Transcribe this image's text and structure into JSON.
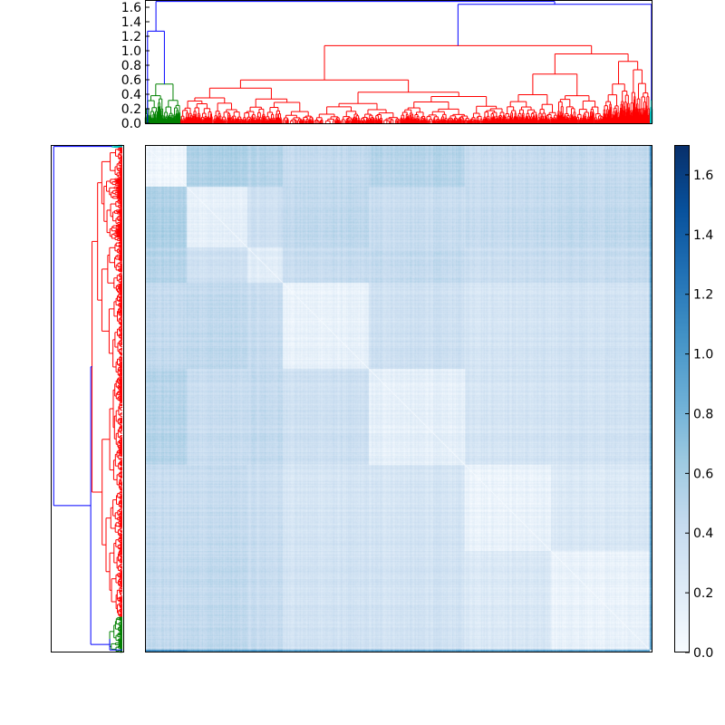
{
  "chart_data": {
    "type": "heatmap",
    "title": "",
    "description_encoding": "clustered distance matrix with top and left dendrograms",
    "colormap": "Blues",
    "top_dendrogram": {
      "ylim": [
        0.0,
        1.7
      ],
      "yticks": [
        0.0,
        0.2,
        0.4,
        0.6,
        0.8,
        1.0,
        1.2,
        1.4,
        1.6
      ],
      "ytick_labels": [
        "0.0",
        "0.2",
        "0.4",
        "0.6",
        "0.8",
        "1.0",
        "1.2",
        "1.4",
        "1.6"
      ],
      "link_colors": {
        "root": "#0000ff",
        "cluster_1": "#008000",
        "cluster_2": "#ff0000",
        "cluster_3": "#00bfbf"
      },
      "merge_heights": {
        "root": 1.68,
        "left_link": 1.27,
        "green_top": 0.54,
        "red_top": 1.07,
        "red_sub_a": 0.98,
        "red_sub_b": 0.8,
        "red_sub_c": 0.65,
        "cyan_top": 1.64
      }
    },
    "colorbar": {
      "range": [
        0.0,
        1.7
      ],
      "ticks": [
        0.0,
        0.2,
        0.4,
        0.6,
        0.8,
        1.0,
        1.2,
        1.4,
        1.6
      ],
      "tick_labels": [
        "0.0",
        "0.2",
        "0.4",
        "0.6",
        "0.8",
        "1.0",
        "1.2",
        "1.4",
        "1.6"
      ],
      "colors": [
        "#f7fbff",
        "#deebf7",
        "#c6dbef",
        "#9ecae1",
        "#6baed6",
        "#4292c6",
        "#2171b5",
        "#08519c",
        "#08306b"
      ]
    },
    "heatmap_blocks": {
      "boundaries": [
        0.0,
        0.08,
        0.2,
        0.27,
        0.44,
        0.63,
        0.8,
        0.995,
        1.0
      ],
      "values": [
        [
          0.05,
          0.55,
          0.5,
          0.42,
          0.5,
          0.4,
          0.42,
          1.1
        ],
        [
          0.55,
          0.15,
          0.35,
          0.45,
          0.4,
          0.42,
          0.45,
          1.0
        ],
        [
          0.5,
          0.35,
          0.18,
          0.4,
          0.42,
          0.38,
          0.4,
          1.0
        ],
        [
          0.42,
          0.45,
          0.4,
          0.12,
          0.35,
          0.3,
          0.32,
          0.95
        ],
        [
          0.5,
          0.4,
          0.42,
          0.35,
          0.15,
          0.3,
          0.32,
          0.95
        ],
        [
          0.4,
          0.42,
          0.38,
          0.3,
          0.3,
          0.12,
          0.25,
          0.95
        ],
        [
          0.42,
          0.45,
          0.4,
          0.32,
          0.32,
          0.25,
          0.12,
          0.95
        ],
        [
          1.1,
          1.0,
          1.0,
          0.95,
          0.95,
          0.95,
          0.95,
          0.0
        ]
      ]
    }
  }
}
